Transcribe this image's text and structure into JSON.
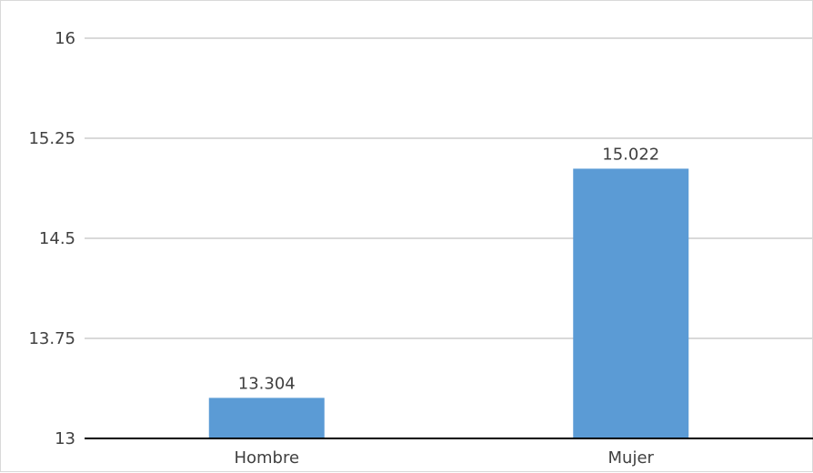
{
  "chart_data": {
    "type": "bar",
    "categories": [
      "Hombre",
      "Mujer"
    ],
    "values": [
      13.304,
      15.022
    ],
    "data_labels": [
      "13.304",
      "15.022"
    ],
    "title": "",
    "xlabel": "",
    "ylabel": "",
    "ylim": [
      13,
      16
    ],
    "y_ticks": [
      13,
      13.75,
      14.5,
      15.25,
      16
    ],
    "y_tick_labels": [
      "13",
      "13.75",
      "14.5",
      "15.25",
      "16"
    ],
    "grid": true,
    "legend": "none",
    "bar_color": "#5b9bd5",
    "grid_color": "#d9d9d9",
    "axis_color": "#000000",
    "text_color": "#404040"
  }
}
